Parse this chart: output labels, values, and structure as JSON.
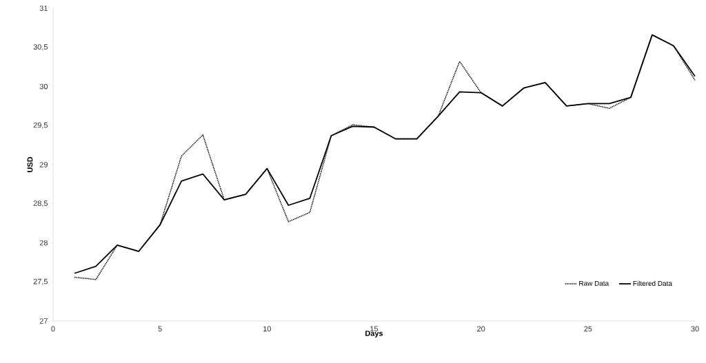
{
  "chart_data": {
    "type": "line",
    "xlabel": "Days",
    "ylabel": "USD",
    "x": [
      1,
      2,
      3,
      4,
      5,
      6,
      7,
      8,
      9,
      10,
      11,
      12,
      13,
      14,
      15,
      16,
      17,
      18,
      19,
      20,
      21,
      22,
      23,
      24,
      25,
      26,
      27,
      28,
      29,
      30
    ],
    "series": [
      {
        "name": "Raw Data",
        "color": "#000000",
        "line_style": "dotted",
        "values": [
          27.56,
          27.53,
          27.97,
          27.89,
          28.23,
          29.11,
          29.38,
          28.55,
          28.62,
          28.95,
          28.27,
          28.39,
          29.37,
          29.51,
          29.48,
          29.33,
          29.33,
          29.62,
          30.32,
          29.92,
          29.75,
          29.98,
          30.05,
          29.75,
          29.78,
          29.72,
          29.86,
          30.66,
          30.52,
          30.08
        ]
      },
      {
        "name": "Filtered Data",
        "color": "#000000",
        "line_style": "solid",
        "values": [
          27.61,
          27.7,
          27.97,
          27.89,
          28.23,
          28.79,
          28.88,
          28.55,
          28.62,
          28.95,
          28.48,
          28.57,
          29.37,
          29.49,
          29.48,
          29.33,
          29.33,
          29.62,
          29.93,
          29.92,
          29.75,
          29.98,
          30.05,
          29.75,
          29.78,
          29.78,
          29.86,
          30.66,
          30.52,
          30.13
        ]
      }
    ],
    "xlim": [
      0,
      30
    ],
    "xticks": [
      0,
      5,
      10,
      15,
      20,
      25,
      30
    ],
    "ylim": [
      27,
      31
    ],
    "yticks": [
      27,
      {
        "value": 27.5,
        "label": "27,5"
      },
      28,
      {
        "value": 28.5,
        "label": "28,5"
      },
      29,
      {
        "value": 29.5,
        "label": "29,5"
      },
      30,
      {
        "value": 30.5,
        "label": "30,5"
      },
      31
    ],
    "legend": "bottom right",
    "grid": false,
    "marker": "none"
  }
}
